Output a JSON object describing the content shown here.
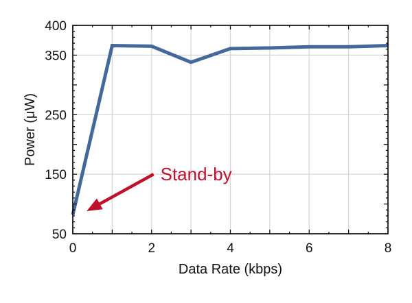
{
  "chart_data": {
    "type": "line",
    "xlabel": "Data Rate (kbps)",
    "ylabel": "Power (μW)",
    "xlim": [
      0,
      8
    ],
    "ylim": [
      50,
      400
    ],
    "xticks": [
      0,
      2,
      4,
      6,
      8
    ],
    "yticks": [
      50,
      150,
      250,
      350,
      400
    ],
    "xgrid": [
      0,
      1,
      2,
      3,
      4,
      5,
      6,
      7,
      8
    ],
    "ygrid": [
      50,
      150,
      250,
      350,
      400
    ],
    "grid": true,
    "series": [
      {
        "x": [
          0,
          1,
          2,
          3,
          4,
          5,
          6,
          7,
          8
        ],
        "y": [
          82,
          366,
          365,
          338,
          361,
          362,
          364,
          364,
          366
        ],
        "color": "#44679c"
      }
    ],
    "annotations": [
      {
        "text": "Stand-by",
        "color": "#c0102a",
        "points_to": {
          "x": 0.35,
          "y": 88
        },
        "from": {
          "x": 2.05,
          "y": 150
        }
      }
    ]
  }
}
